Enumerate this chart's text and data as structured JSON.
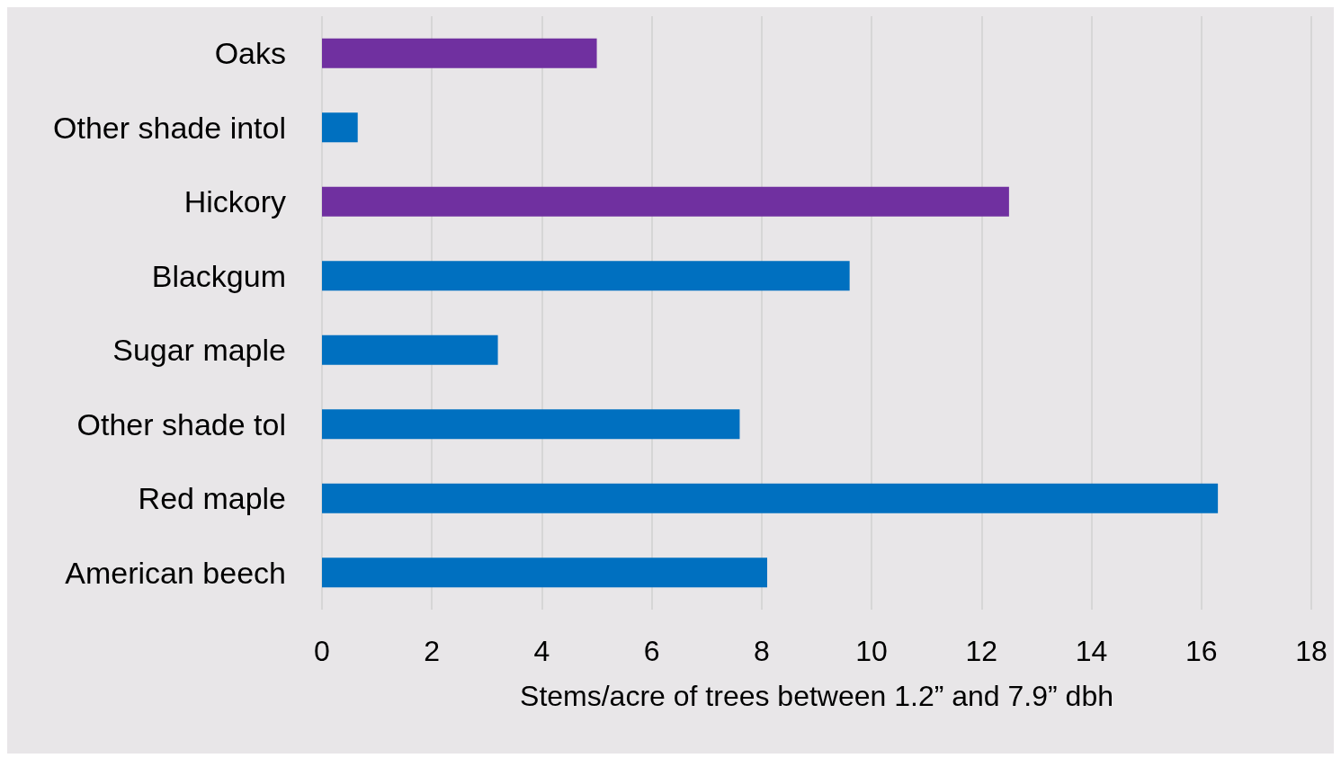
{
  "chart_data": {
    "type": "bar",
    "orientation": "horizontal",
    "xlabel": "Stems/acre of trees between 1.2” and 7.9” dbh",
    "categories": [
      "Oaks",
      "Other shade intol",
      "Hickory",
      "Blackgum",
      "Sugar maple",
      "Other shade tol",
      "Red maple",
      "American beech"
    ],
    "values": [
      5.0,
      0.65,
      12.5,
      9.6,
      3.2,
      7.6,
      16.3,
      8.1
    ],
    "colors": [
      "#7030a0",
      "#0070c0",
      "#7030a0",
      "#0070c0",
      "#0070c0",
      "#0070c0",
      "#0070c0",
      "#0070c0"
    ],
    "xlim": [
      0,
      18
    ],
    "xticks": [
      0,
      2,
      4,
      6,
      8,
      10,
      12,
      14,
      16,
      18
    ],
    "grid": "x"
  }
}
